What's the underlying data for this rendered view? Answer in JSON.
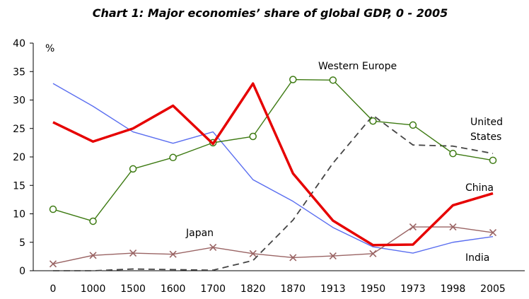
{
  "chart_data": {
    "type": "line",
    "title": "Chart 1: Major economies’ share of global GDP, 0 - 2005",
    "ylabel": "%",
    "ylim": [
      0,
      40
    ],
    "yticks": [
      "0",
      "5",
      "10",
      "15",
      "20",
      "25",
      "30",
      "35",
      "40"
    ],
    "categories": [
      "0",
      "1000",
      "1500",
      "1600",
      "1700",
      "1820",
      "1870",
      "1913",
      "1950",
      "1973",
      "1998",
      "2005"
    ],
    "grid": false,
    "series": [
      {
        "name": "China",
        "color": "#e60000",
        "marker": "none",
        "style": "solid-thick",
        "values": [
          26.1,
          22.7,
          25.0,
          29.0,
          22.3,
          32.9,
          17.1,
          8.8,
          4.5,
          4.6,
          11.5,
          13.6
        ]
      },
      {
        "name": "India",
        "color": "#5a6ef0",
        "marker": "none",
        "style": "solid",
        "values": [
          32.9,
          28.9,
          24.4,
          22.4,
          24.4,
          16.0,
          12.2,
          7.6,
          4.2,
          3.1,
          5.0,
          6.0
        ]
      },
      {
        "name": "Western Europe",
        "color": "#3d7a12",
        "marker": "circle",
        "style": "solid",
        "values": [
          10.8,
          8.7,
          17.9,
          19.9,
          22.5,
          23.6,
          33.6,
          33.5,
          26.3,
          25.6,
          20.6,
          19.4
        ]
      },
      {
        "name": "United States",
        "color": "#444444",
        "marker": "none",
        "style": "dashed",
        "values": [
          0.0,
          0.0,
          0.3,
          0.2,
          0.1,
          1.8,
          8.9,
          18.9,
          27.3,
          22.1,
          21.9,
          20.6
        ]
      },
      {
        "name": "Japan",
        "color": "#9a6464",
        "marker": "x",
        "style": "solid",
        "values": [
          1.2,
          2.7,
          3.1,
          2.9,
          4.1,
          3.0,
          2.3,
          2.6,
          3.0,
          7.7,
          7.7,
          6.7
        ]
      }
    ],
    "annotations": {
      "western_europe": "Western Europe",
      "united_states_line1": "United",
      "united_states_line2": "States",
      "china": "China",
      "japan": "Japan",
      "india": "India"
    }
  }
}
